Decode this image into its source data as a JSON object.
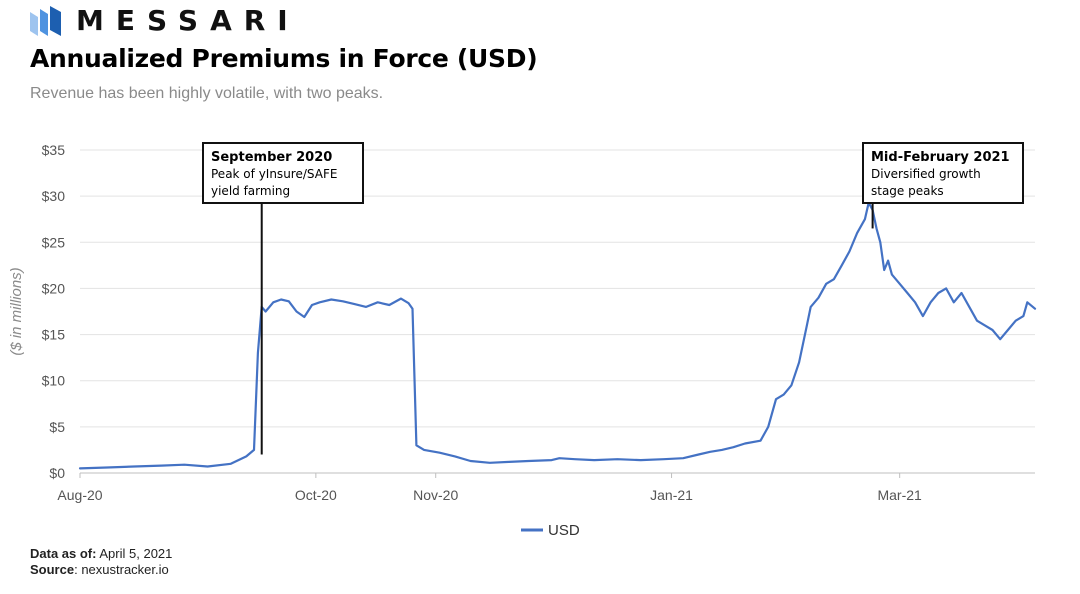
{
  "brand": {
    "name": "MESSARI",
    "logo_icon": "messari-logo-icon"
  },
  "title": "Annualized Premiums in Force (USD)",
  "subtitle": "Revenue has been highly volatile, with two peaks.",
  "footer": {
    "data_as_of_label": "Data as of",
    "data_as_of_value": "April 5, 2021",
    "source_label": "Source",
    "source_value": "nexustracker.io"
  },
  "colors": {
    "line": "#4472c4",
    "grid": "#e3e3e3",
    "axis_text": "#555555",
    "ylabel": "#8a8a8a"
  },
  "chart_data": {
    "type": "line",
    "title": "Annualized Premiums in Force (USD)",
    "ylabel": "($ in millions)",
    "xlabel": "",
    "ylim": [
      0,
      35
    ],
    "xlim": [
      "2020-08-01",
      "2021-04-05"
    ],
    "y_ticks": [
      0,
      5,
      10,
      15,
      20,
      25,
      30,
      35
    ],
    "y_tick_labels": [
      "$0",
      "$5",
      "$10",
      "$15",
      "$20",
      "$25",
      "$30",
      "$35"
    ],
    "x_ticks": [
      "2020-08-01",
      "2020-10-01",
      "2020-11-01",
      "2021-01-01",
      "2021-03-01"
    ],
    "x_tick_labels": [
      "Aug-20",
      "Oct-20",
      "Nov-20",
      "Jan-21",
      "Mar-21"
    ],
    "grid": true,
    "legend": {
      "position": "bottom",
      "entries": [
        "USD"
      ]
    },
    "series": [
      {
        "name": "USD",
        "color": "#4472c4",
        "points": [
          [
            "2020-08-01",
            0.5
          ],
          [
            "2020-08-08",
            0.6
          ],
          [
            "2020-08-15",
            0.7
          ],
          [
            "2020-08-22",
            0.8
          ],
          [
            "2020-08-28",
            0.9
          ],
          [
            "2020-09-03",
            0.7
          ],
          [
            "2020-09-09",
            1.0
          ],
          [
            "2020-09-13",
            1.8
          ],
          [
            "2020-09-15",
            2.5
          ],
          [
            "2020-09-16",
            13.0
          ],
          [
            "2020-09-17",
            18.0
          ],
          [
            "2020-09-18",
            17.5
          ],
          [
            "2020-09-20",
            18.5
          ],
          [
            "2020-09-22",
            18.8
          ],
          [
            "2020-09-24",
            18.6
          ],
          [
            "2020-09-26",
            17.5
          ],
          [
            "2020-09-28",
            16.9
          ],
          [
            "2020-09-30",
            18.2
          ],
          [
            "2020-10-02",
            18.5
          ],
          [
            "2020-10-05",
            18.8
          ],
          [
            "2020-10-08",
            18.6
          ],
          [
            "2020-10-11",
            18.3
          ],
          [
            "2020-10-14",
            18.0
          ],
          [
            "2020-10-17",
            18.5
          ],
          [
            "2020-10-20",
            18.2
          ],
          [
            "2020-10-23",
            18.9
          ],
          [
            "2020-10-25",
            18.4
          ],
          [
            "2020-10-26",
            17.8
          ],
          [
            "2020-10-27",
            3.0
          ],
          [
            "2020-10-29",
            2.5
          ],
          [
            "2020-11-02",
            2.2
          ],
          [
            "2020-11-06",
            1.8
          ],
          [
            "2020-11-10",
            1.3
          ],
          [
            "2020-11-15",
            1.1
          ],
          [
            "2020-11-20",
            1.2
          ],
          [
            "2020-11-25",
            1.3
          ],
          [
            "2020-12-01",
            1.4
          ],
          [
            "2020-12-03",
            1.6
          ],
          [
            "2020-12-07",
            1.5
          ],
          [
            "2020-12-12",
            1.4
          ],
          [
            "2020-12-18",
            1.5
          ],
          [
            "2020-12-24",
            1.4
          ],
          [
            "2020-12-30",
            1.5
          ],
          [
            "2021-01-04",
            1.6
          ],
          [
            "2021-01-08",
            2.0
          ],
          [
            "2021-01-11",
            2.3
          ],
          [
            "2021-01-14",
            2.5
          ],
          [
            "2021-01-17",
            2.8
          ],
          [
            "2021-01-20",
            3.2
          ],
          [
            "2021-01-24",
            3.5
          ],
          [
            "2021-01-26",
            5.0
          ],
          [
            "2021-01-28",
            8.0
          ],
          [
            "2021-01-30",
            8.5
          ],
          [
            "2021-02-01",
            9.5
          ],
          [
            "2021-02-03",
            12.0
          ],
          [
            "2021-02-05",
            16.0
          ],
          [
            "2021-02-06",
            18.0
          ],
          [
            "2021-02-08",
            19.0
          ],
          [
            "2021-02-10",
            20.5
          ],
          [
            "2021-02-12",
            21.0
          ],
          [
            "2021-02-14",
            22.5
          ],
          [
            "2021-02-16",
            24.0
          ],
          [
            "2021-02-18",
            26.0
          ],
          [
            "2021-02-20",
            27.5
          ],
          [
            "2021-02-21",
            29.3
          ],
          [
            "2021-02-22",
            28.5
          ],
          [
            "2021-02-23",
            26.5
          ],
          [
            "2021-02-24",
            25.0
          ],
          [
            "2021-02-25",
            22.0
          ],
          [
            "2021-02-26",
            23.0
          ],
          [
            "2021-02-27",
            21.5
          ],
          [
            "2021-03-01",
            20.5
          ],
          [
            "2021-03-03",
            19.5
          ],
          [
            "2021-03-05",
            18.5
          ],
          [
            "2021-03-07",
            17.0
          ],
          [
            "2021-03-09",
            18.5
          ],
          [
            "2021-03-11",
            19.5
          ],
          [
            "2021-03-13",
            20.0
          ],
          [
            "2021-03-15",
            18.5
          ],
          [
            "2021-03-17",
            19.5
          ],
          [
            "2021-03-19",
            18.0
          ],
          [
            "2021-03-21",
            16.5
          ],
          [
            "2021-03-23",
            16.0
          ],
          [
            "2021-03-25",
            15.5
          ],
          [
            "2021-03-27",
            14.5
          ],
          [
            "2021-03-29",
            15.5
          ],
          [
            "2021-03-31",
            16.5
          ],
          [
            "2021-04-02",
            17.0
          ],
          [
            "2021-04-03",
            18.5
          ],
          [
            "2021-04-05",
            17.8
          ]
        ]
      }
    ],
    "annotations": [
      {
        "title": "September 2020",
        "lines": [
          "Peak of yInsure/SAFE",
          "yield farming"
        ],
        "date": "2020-09-17",
        "value": 2.0
      },
      {
        "title": "Mid-February 2021",
        "lines": [
          "Diversified growth",
          "stage peaks"
        ],
        "date": "2021-02-22",
        "value": 26.5
      }
    ]
  }
}
